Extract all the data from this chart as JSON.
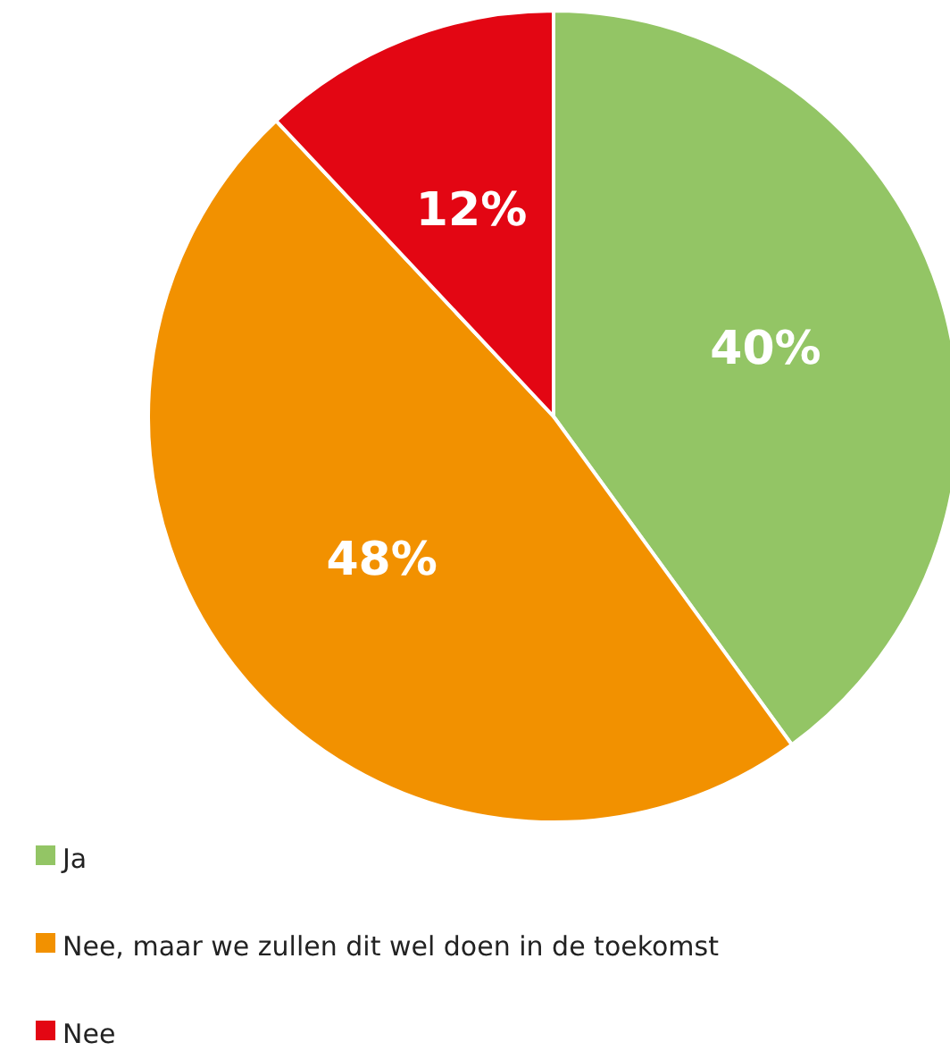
{
  "chart_data": {
    "type": "pie",
    "categories": [
      "Ja",
      "Nee, maar we zullen dit wel doen in de toekomst",
      "Nee"
    ],
    "values": [
      40,
      48,
      12
    ],
    "colors": [
      "#93c565",
      "#f29100",
      "#e30613"
    ],
    "value_labels": [
      "40%",
      "48%",
      "12%"
    ],
    "legend": "bottom left"
  }
}
